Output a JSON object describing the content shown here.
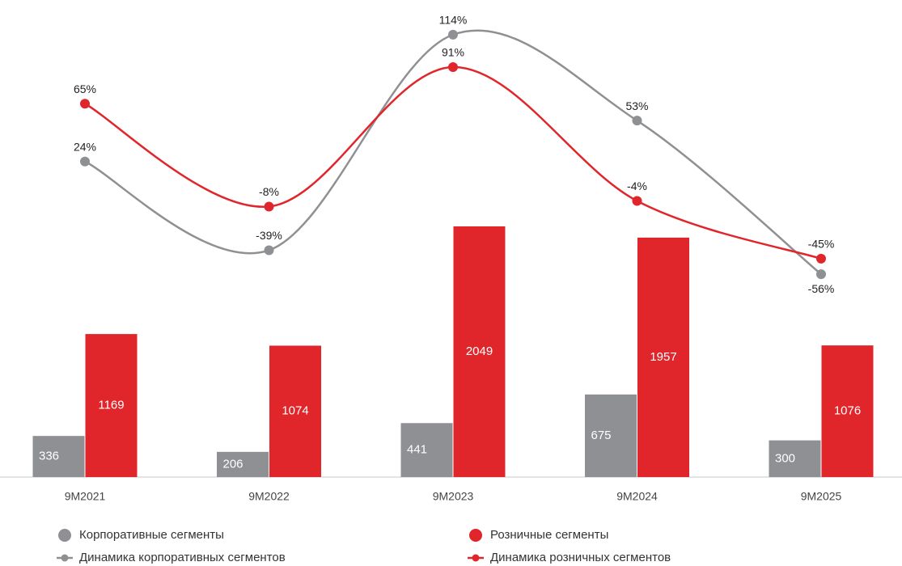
{
  "chart_data": {
    "type": "bar",
    "categories": [
      "9M2021",
      "9M2022",
      "9M2023",
      "9M2024",
      "9M2025"
    ],
    "ylim": [
      0,
      3800
    ],
    "y2lim": [
      -200,
      130
    ],
    "series": [
      {
        "name": "Корпоративные сегменты",
        "type": "bar",
        "color": "#8e9093",
        "values": [
          336,
          206,
          441,
          675,
          300
        ]
      },
      {
        "name": "Розничные сегменты",
        "type": "bar",
        "color": "#e0262b",
        "values": [
          1169,
          1074,
          2049,
          1957,
          1076
        ]
      },
      {
        "name": "Динамика корпоративных сегментов",
        "type": "line",
        "axis": "y2",
        "color": "#8e9093",
        "values": [
          24,
          -39,
          114,
          53,
          -56
        ],
        "value_labels": [
          "24%",
          "-39%",
          "114%",
          "53%",
          "-56%"
        ]
      },
      {
        "name": "Динамика розничных сегментов",
        "type": "line",
        "axis": "y2",
        "color": "#e0262b",
        "values": [
          65,
          -8,
          91,
          -4,
          -45
        ],
        "value_labels": [
          "65%",
          "-8%",
          "91%",
          "-4%",
          "-45%"
        ]
      }
    ]
  }
}
